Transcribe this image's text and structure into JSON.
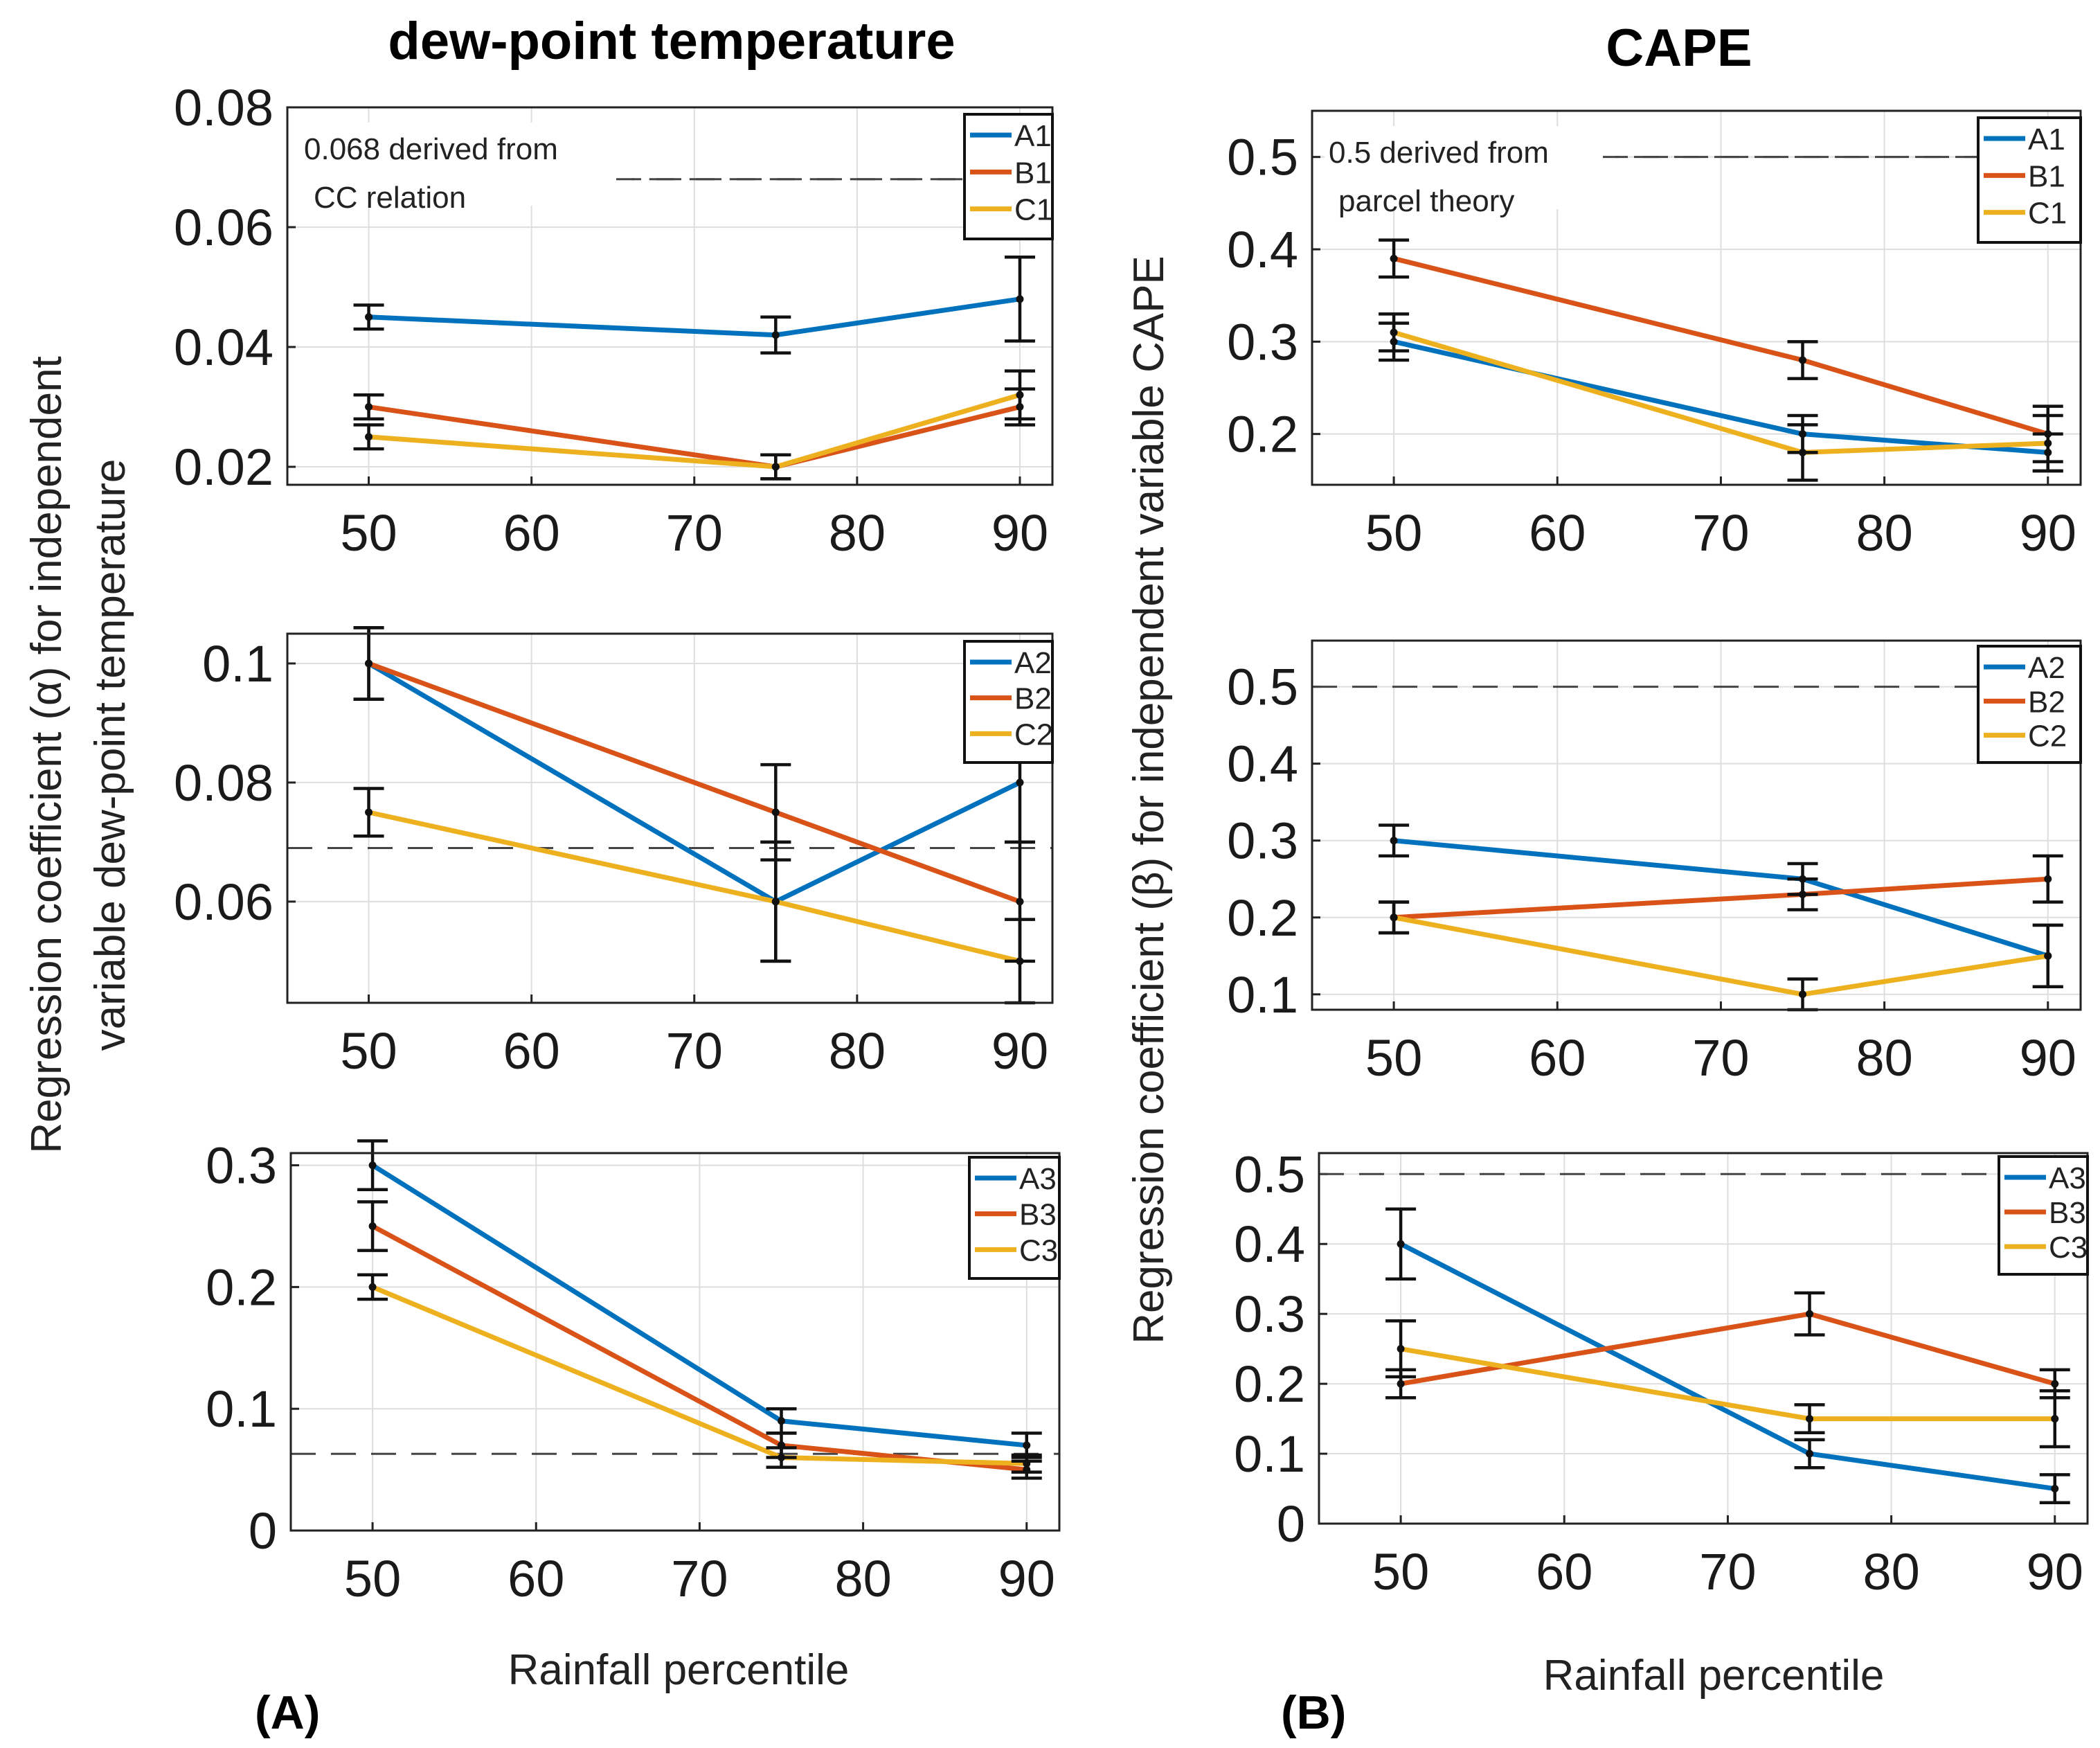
{
  "figure": {
    "columns": [
      {
        "title": "dew-point temperature",
        "panel_label": "(A)",
        "xlabel": "Rainfall percentile",
        "ylabel": [
          "Regression coefficient (α) for independent",
          "variable dew-point temperature"
        ]
      },
      {
        "title": "CAPE",
        "panel_label": "(B)",
        "xlabel": "Rainfall percentile",
        "ylabel": [
          "Regression coefficient (β) for independent variable CAPE"
        ]
      }
    ],
    "colors": {
      "A": "#0072BD",
      "B": "#D95319",
      "C": "#EDB120"
    }
  },
  "chart_data": [
    {
      "type": "line",
      "column": 0,
      "row": 0,
      "xlim": [
        45,
        92
      ],
      "ylim": [
        0.017,
        0.08
      ],
      "xticks": [
        50,
        60,
        70,
        80,
        90
      ],
      "yticks": [
        0.02,
        0.04,
        0.06,
        0.08
      ],
      "ytick_labels": [
        "0.02",
        "0.04",
        "0.06",
        "0.08"
      ],
      "x": [
        50,
        75,
        90
      ],
      "series": [
        {
          "name": "A1",
          "color": "#0072BD",
          "values": [
            0.045,
            0.042,
            0.048
          ],
          "err": [
            0.002,
            0.003,
            0.007
          ]
        },
        {
          "name": "B1",
          "color": "#D95319",
          "values": [
            0.03,
            0.02,
            0.03
          ],
          "err": [
            0.002,
            0.002,
            0.003
          ]
        },
        {
          "name": "C1",
          "color": "#EDB120",
          "values": [
            0.025,
            0.02,
            0.032
          ],
          "err": [
            0.002,
            0.002,
            0.004
          ]
        }
      ],
      "reference": {
        "y": 0.068,
        "from_x": 47.5,
        "to_x": 92
      },
      "annotation": [
        "0.068 derived from",
        "CC relation"
      ]
    },
    {
      "type": "line",
      "column": 0,
      "row": 1,
      "xlim": [
        45,
        92
      ],
      "ylim": [
        0.043,
        0.105
      ],
      "xticks": [
        50,
        60,
        70,
        80,
        90
      ],
      "yticks": [
        0.06,
        0.08,
        0.1
      ],
      "ytick_labels": [
        "0.06",
        "0.08",
        "0.1"
      ],
      "x": [
        50,
        75,
        90
      ],
      "series": [
        {
          "name": "A2",
          "color": "#0072BD",
          "values": [
            0.1,
            0.06,
            0.08
          ],
          "err": [
            0.006,
            0.01,
            0.01
          ]
        },
        {
          "name": "B2",
          "color": "#D95319",
          "values": [
            0.1,
            0.075,
            0.06
          ],
          "err": [
            0.006,
            0.008,
            0.01
          ]
        },
        {
          "name": "C2",
          "color": "#EDB120",
          "values": [
            0.075,
            0.06,
            0.05
          ],
          "err": [
            0.004,
            0.01,
            0.007
          ]
        }
      ],
      "reference": {
        "y": 0.069,
        "from_x": 45,
        "to_x": 92
      }
    },
    {
      "type": "line",
      "column": 0,
      "row": 2,
      "xlim": [
        45,
        92
      ],
      "ylim": [
        0,
        0.31
      ],
      "xticks": [
        50,
        60,
        70,
        80,
        90
      ],
      "yticks": [
        0,
        0.1,
        0.2,
        0.3
      ],
      "ytick_labels": [
        "0",
        "0.1",
        "0.2",
        "0.3"
      ],
      "x": [
        50,
        75,
        90
      ],
      "series": [
        {
          "name": "A3",
          "color": "#0072BD",
          "values": [
            0.3,
            0.09,
            0.07
          ],
          "err": [
            0.02,
            0.01,
            0.01
          ]
        },
        {
          "name": "B3",
          "color": "#D95319",
          "values": [
            0.25,
            0.07,
            0.05
          ],
          "err": [
            0.02,
            0.01,
            0.007
          ]
        },
        {
          "name": "C3",
          "color": "#EDB120",
          "values": [
            0.2,
            0.06,
            0.055
          ],
          "err": [
            0.01,
            0.008,
            0.007
          ]
        }
      ],
      "reference": {
        "y": 0.063,
        "from_x": 45,
        "to_x": 92
      }
    },
    {
      "type": "line",
      "column": 1,
      "row": 0,
      "xlim": [
        45,
        92
      ],
      "ylim": [
        0.145,
        0.55
      ],
      "xticks": [
        50,
        60,
        70,
        80,
        90
      ],
      "yticks": [
        0.2,
        0.3,
        0.4,
        0.5
      ],
      "ytick_labels": [
        "0.2",
        "0.3",
        "0.4",
        "0.5"
      ],
      "x": [
        50,
        75,
        90
      ],
      "series": [
        {
          "name": "A1",
          "color": "#0072BD",
          "values": [
            0.3,
            0.2,
            0.18
          ],
          "err": [
            0.02,
            0.02,
            0.02
          ]
        },
        {
          "name": "B1",
          "color": "#D95319",
          "values": [
            0.39,
            0.28,
            0.2
          ],
          "err": [
            0.02,
            0.02,
            0.03
          ]
        },
        {
          "name": "C1",
          "color": "#EDB120",
          "values": [
            0.31,
            0.18,
            0.19
          ],
          "err": [
            0.02,
            0.03,
            0.03
          ]
        }
      ],
      "reference": {
        "y": 0.5,
        "from_x": 47.5,
        "to_x": 92
      },
      "annotation": [
        "0.5 derived from",
        "parcel theory"
      ]
    },
    {
      "type": "line",
      "column": 1,
      "row": 1,
      "xlim": [
        45,
        92
      ],
      "ylim": [
        0.08,
        0.56
      ],
      "xticks": [
        50,
        60,
        70,
        80,
        90
      ],
      "yticks": [
        0.1,
        0.2,
        0.3,
        0.4,
        0.5
      ],
      "ytick_labels": [
        "0.1",
        "0.2",
        "0.3",
        "0.4",
        "0.5"
      ],
      "x": [
        50,
        75,
        90
      ],
      "series": [
        {
          "name": "A2",
          "color": "#0072BD",
          "values": [
            0.3,
            0.25,
            0.15
          ],
          "err": [
            0.02,
            0.02,
            0.04
          ]
        },
        {
          "name": "B2",
          "color": "#D95319",
          "values": [
            0.2,
            0.23,
            0.25
          ],
          "err": [
            0.02,
            0.02,
            0.03
          ]
        },
        {
          "name": "C2",
          "color": "#EDB120",
          "values": [
            0.2,
            0.1,
            0.15
          ],
          "err": [
            0.02,
            0.02,
            0.04
          ]
        }
      ],
      "reference": {
        "y": 0.5,
        "from_x": 45,
        "to_x": 92
      }
    },
    {
      "type": "line",
      "column": 1,
      "row": 2,
      "xlim": [
        45,
        92
      ],
      "ylim": [
        0,
        0.53
      ],
      "xticks": [
        50,
        60,
        70,
        80,
        90
      ],
      "yticks": [
        0,
        0.1,
        0.2,
        0.3,
        0.4,
        0.5
      ],
      "ytick_labels": [
        "0",
        "0.1",
        "0.2",
        "0.3",
        "0.4",
        "0.5"
      ],
      "x": [
        50,
        75,
        90
      ],
      "series": [
        {
          "name": "A3",
          "color": "#0072BD",
          "values": [
            0.4,
            0.1,
            0.05
          ],
          "err": [
            0.05,
            0.02,
            0.02
          ]
        },
        {
          "name": "B3",
          "color": "#D95319",
          "values": [
            0.2,
            0.3,
            0.2
          ],
          "err": [
            0.02,
            0.03,
            0.02
          ]
        },
        {
          "name": "C3",
          "color": "#EDB120",
          "values": [
            0.25,
            0.15,
            0.15
          ],
          "err": [
            0.04,
            0.02,
            0.04
          ]
        }
      ],
      "reference": {
        "y": 0.5,
        "from_x": 45,
        "to_x": 92
      }
    }
  ]
}
